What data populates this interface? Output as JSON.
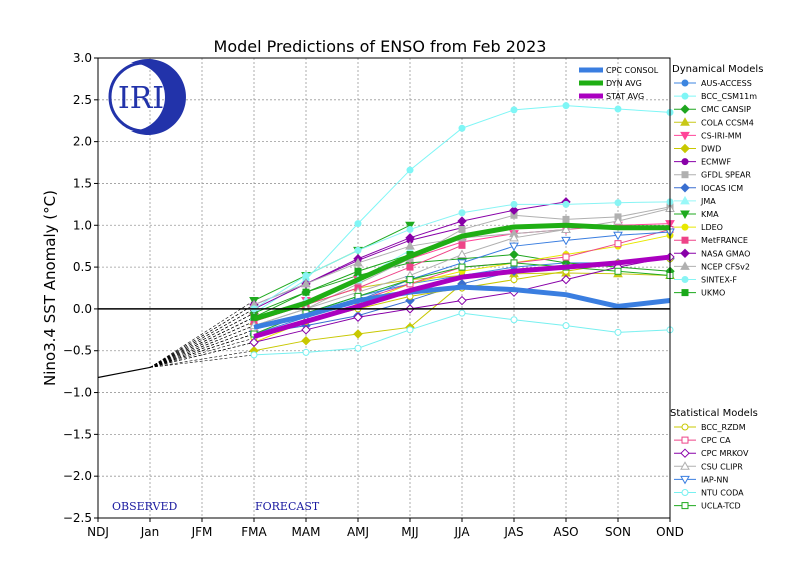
{
  "chart_data": {
    "type": "line",
    "title": "Model Predictions of ENSO from Feb 2023",
    "ylabel": "Nino3.4 SST Anomaly (°C)",
    "xlabel": "",
    "x": [
      "NDJ",
      "Jan",
      "JFM",
      "FMA",
      "MAM",
      "AMJ",
      "MJJ",
      "JJA",
      "JAS",
      "ASO",
      "SON",
      "OND"
    ],
    "ylim": [
      -2.5,
      3.0
    ],
    "yticks": [
      "−2.5",
      "−2.0",
      "−1.5",
      "−1.0",
      "−0.5",
      "0.0",
      "0.5",
      "1.0",
      "1.5",
      "2.0",
      "2.5",
      "3.0"
    ],
    "grid": true,
    "observed": {
      "x": [
        "NDJ",
        "Jan"
      ],
      "values": [
        -0.82,
        -0.7
      ]
    },
    "phase_labels": {
      "observed": "OBSERVED",
      "forecast": "FORECAST"
    },
    "logo_text": "IRI",
    "legend_position": "right",
    "consensus_series": [
      {
        "name": "CPC CONSOL",
        "color": "#3a7ee0",
        "values": [
          null,
          null,
          null,
          -0.22,
          -0.08,
          0.1,
          0.2,
          0.26,
          0.23,
          0.17,
          0.03,
          0.1
        ]
      },
      {
        "name": "DYN AVG",
        "color": "#1fae14",
        "values": [
          null,
          null,
          null,
          -0.12,
          0.07,
          0.35,
          0.63,
          0.87,
          0.98,
          1.0,
          0.97,
          0.97
        ]
      },
      {
        "name": "STAT AVG",
        "color": "#aa00c0",
        "values": [
          null,
          null,
          null,
          -0.33,
          -0.15,
          0.03,
          0.22,
          0.38,
          0.45,
          0.5,
          0.55,
          0.62
        ]
      }
    ],
    "dynamical_title": "Dynamical Models",
    "dynamical_models": [
      {
        "name": "AUS-ACCESS",
        "color": "#3d86e0",
        "marker": "circle",
        "fill": true,
        "values": [
          null,
          null,
          null,
          -0.25,
          -0.05,
          0.15,
          0.3,
          0.4,
          0.5,
          0.55,
          0.55,
          0.6
        ]
      },
      {
        "name": "BCC_CSM11m",
        "color": "#7ff6f6",
        "marker": "circle",
        "fill": true,
        "values": [
          null,
          null,
          null,
          -0.05,
          0.35,
          1.02,
          1.66,
          2.16,
          2.38,
          2.43,
          2.39,
          2.35
        ]
      },
      {
        "name": "CMC CANSIP",
        "color": "#1fa51f",
        "marker": "diamond",
        "fill": true,
        "values": [
          null,
          null,
          null,
          -0.05,
          0.2,
          0.4,
          0.55,
          0.6,
          0.65,
          0.55,
          0.5,
          0.45
        ]
      },
      {
        "name": "COLA CCSM4",
        "color": "#c8c818",
        "marker": "triangle-up",
        "fill": true,
        "values": [
          null,
          null,
          null,
          -0.15,
          0.05,
          0.25,
          0.35,
          0.4,
          0.42,
          0.43,
          0.42,
          0.4
        ]
      },
      {
        "name": "CS-IRI-MM",
        "color": "#ff4499",
        "marker": "triangle-down",
        "fill": true,
        "values": [
          null,
          null,
          null,
          -0.1,
          0.1,
          0.35,
          0.6,
          0.8,
          0.9,
          0.95,
          1.0,
          1.02
        ]
      },
      {
        "name": "DWD",
        "color": "#c8c800",
        "marker": "diamond",
        "fill": true,
        "values": [
          null,
          null,
          null,
          -0.5,
          -0.38,
          -0.3,
          -0.22,
          0.3,
          null,
          null,
          null,
          null
        ]
      },
      {
        "name": "ECMWF",
        "color": "#8800a8",
        "marker": "circle",
        "fill": true,
        "values": [
          null,
          null,
          null,
          0.0,
          0.3,
          0.58,
          0.82,
          0.97,
          null,
          null,
          null,
          null
        ]
      },
      {
        "name": "GFDL SPEAR",
        "color": "#b0b0b0",
        "marker": "square",
        "fill": true,
        "values": [
          null,
          null,
          null,
          -0.2,
          0.0,
          0.3,
          0.6,
          0.95,
          1.12,
          1.07,
          1.1,
          1.22
        ]
      },
      {
        "name": "IOCAS ICM",
        "color": "#3a6fd0",
        "marker": "diamond",
        "fill": true,
        "values": [
          null,
          null,
          null,
          -0.3,
          -0.2,
          -0.08,
          0.1,
          0.3,
          0.45,
          0.5,
          0.55,
          0.6
        ]
      },
      {
        "name": "JMA",
        "color": "#99f8f8",
        "marker": "triangle-up",
        "fill": true,
        "values": [
          null,
          null,
          null,
          -0.1,
          0.1,
          0.35,
          0.7,
          null,
          null,
          null,
          null,
          null
        ]
      },
      {
        "name": "KMA",
        "color": "#1faa1f",
        "marker": "triangle-down",
        "fill": true,
        "values": [
          null,
          null,
          null,
          0.1,
          0.4,
          0.7,
          1.0,
          null,
          null,
          null,
          null,
          null
        ]
      },
      {
        "name": "LDEO",
        "color": "#e8e800",
        "marker": "circle",
        "fill": true,
        "values": [
          null,
          null,
          null,
          -0.4,
          -0.15,
          0.05,
          0.3,
          0.45,
          0.55,
          0.65,
          0.75,
          0.88
        ]
      },
      {
        "name": "MetFRANCE",
        "color": "#ee4488",
        "marker": "square",
        "fill": true,
        "values": [
          null,
          null,
          null,
          -0.15,
          0.05,
          0.25,
          0.5,
          0.76,
          null,
          null,
          null,
          null
        ]
      },
      {
        "name": "NASA GMAO",
        "color": "#8800a8",
        "marker": "diamond",
        "fill": true,
        "values": [
          null,
          null,
          null,
          0.05,
          0.3,
          0.6,
          0.85,
          1.05,
          1.18,
          1.28,
          null,
          null
        ]
      },
      {
        "name": "NCEP CFSv2",
        "color": "#b0b0b0",
        "marker": "triangle-up",
        "fill": true,
        "values": [
          null,
          null,
          null,
          0.05,
          0.3,
          0.55,
          0.75,
          0.85,
          0.9,
          0.95,
          null,
          null
        ]
      },
      {
        "name": "SINTEX-F",
        "color": "#88f4f4",
        "marker": "circle",
        "fill": true,
        "values": [
          null,
          null,
          null,
          0.0,
          0.4,
          0.7,
          0.95,
          1.15,
          1.25,
          1.25,
          1.27,
          1.28
        ]
      },
      {
        "name": "UKMO",
        "color": "#1aa81a",
        "marker": "square",
        "fill": true,
        "values": [
          null,
          null,
          null,
          -0.1,
          0.2,
          0.45,
          0.65,
          null,
          null,
          null,
          null,
          null
        ]
      }
    ],
    "statistical_title": "Statistical Models",
    "statistical_models": [
      {
        "name": "BCC_RZDM",
        "color": "#c8c800",
        "marker": "circle",
        "fill": false,
        "values": [
          null,
          null,
          null,
          -0.35,
          -0.15,
          0.0,
          0.15,
          0.25,
          0.35,
          0.45,
          0.55,
          0.6
        ]
      },
      {
        "name": "CPC CA",
        "color": "#ee4488",
        "marker": "square",
        "fill": false,
        "values": [
          null,
          null,
          null,
          -0.25,
          -0.05,
          0.1,
          0.3,
          0.5,
          0.55,
          0.62,
          0.78,
          0.95
        ]
      },
      {
        "name": "CPC MRKOV",
        "color": "#8800a8",
        "marker": "diamond",
        "fill": false,
        "values": [
          null,
          null,
          null,
          -0.4,
          -0.25,
          -0.1,
          0.0,
          0.1,
          0.2,
          0.35,
          0.5,
          0.62
        ]
      },
      {
        "name": "CSU CLIPR",
        "color": "#b0b0b0",
        "marker": "triangle-up",
        "fill": false,
        "values": [
          null,
          null,
          null,
          -0.2,
          0.0,
          0.2,
          0.4,
          0.65,
          0.85,
          0.95,
          1.05,
          1.2
        ]
      },
      {
        "name": "IAP-NN",
        "color": "#3a7ee0",
        "marker": "triangle-down",
        "fill": false,
        "values": [
          null,
          null,
          null,
          -0.3,
          -0.1,
          0.1,
          0.35,
          0.55,
          0.75,
          0.82,
          0.88,
          0.92
        ]
      },
      {
        "name": "NTU CODA",
        "color": "#77f0f0",
        "marker": "circle",
        "fill": false,
        "values": [
          null,
          null,
          null,
          -0.55,
          -0.52,
          -0.47,
          -0.25,
          -0.05,
          -0.13,
          -0.2,
          -0.28,
          -0.25
        ]
      },
      {
        "name": "UCLA-TCD",
        "color": "#1faa1f",
        "marker": "square",
        "fill": false,
        "values": [
          null,
          null,
          null,
          -0.3,
          -0.05,
          0.15,
          0.35,
          0.5,
          0.55,
          0.5,
          0.45,
          0.4
        ]
      }
    ]
  }
}
